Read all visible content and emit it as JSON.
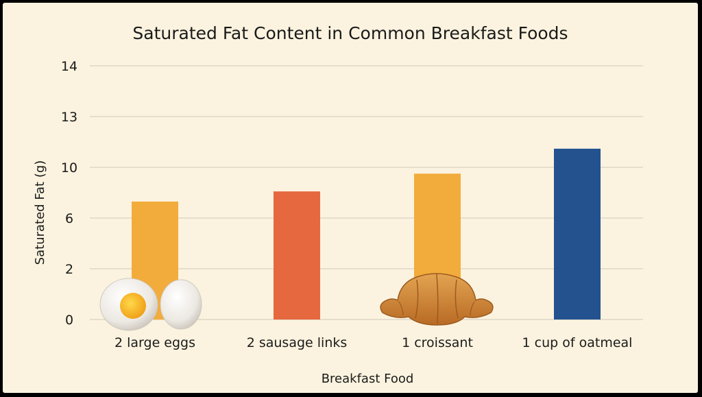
{
  "chart_data": {
    "type": "bar",
    "title": "Saturated Fat Content in Common Breakfast Foods",
    "xlabel": "Breakfast Food",
    "ylabel": "Saturated Fat (g)",
    "y_ticks": [
      "14",
      "13",
      "10",
      "6",
      "2",
      "0"
    ],
    "categories": [
      "2 large eggs",
      "2 sausage links",
      "1 croissant",
      "1 cup of oatmeal"
    ],
    "values": [
      7.3,
      8.1,
      9.5,
      11.1
    ],
    "colors": [
      "#f2ac3c",
      "#e5683f",
      "#f2ac3c",
      "#23528f"
    ],
    "icons": [
      "egg-icon",
      "",
      "croissant-icon",
      ""
    ],
    "grid": true,
    "legend": "none"
  }
}
